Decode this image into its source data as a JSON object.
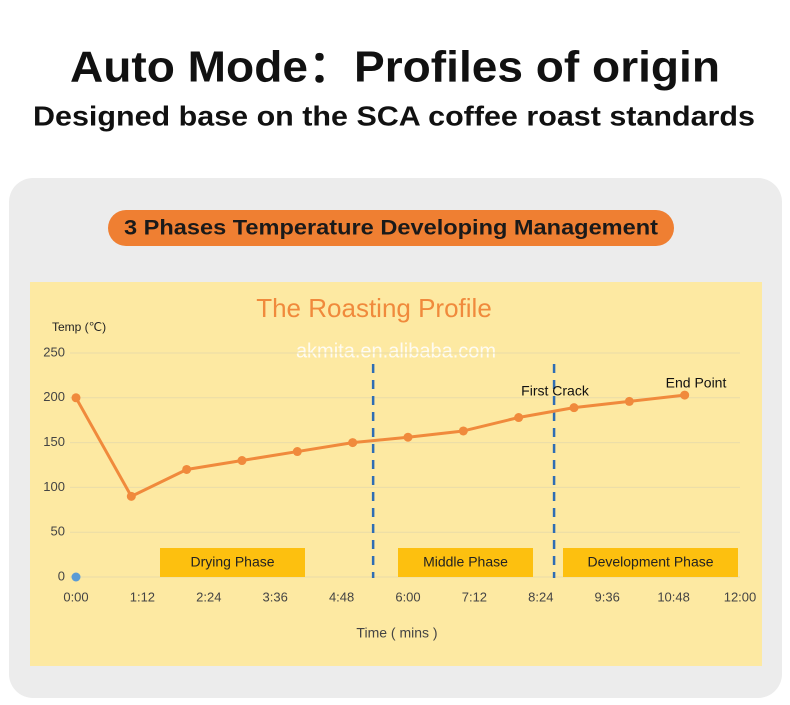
{
  "header": {
    "title": "Auto Mode：Profiles of origin",
    "subtitle": "Designed base on the SCA coffee roast standards"
  },
  "banner": "3 Phases Temperature Developing Management",
  "chart_data": {
    "type": "line",
    "title": "The Roasting Profile",
    "watermark": "akmita.en.alibaba.com",
    "y_label": "Temp (℃)",
    "x_label": "Time ( mins )",
    "series": [
      {
        "color": "#f08a3c",
        "x": [
          0,
          1,
          2,
          3,
          4,
          5,
          6,
          7,
          8,
          9,
          10,
          11
        ],
        "values": [
          200,
          90,
          120,
          130,
          140,
          150,
          156,
          163,
          178,
          189,
          196,
          203
        ]
      }
    ],
    "start_marker": {
      "x": 0,
      "value": 0,
      "color": "#5b9bd5"
    },
    "xlim": [
      0,
      12
    ],
    "xticks": [
      {
        "value": 0,
        "label": "0:00"
      },
      {
        "value": 1.2,
        "label": "1:12"
      },
      {
        "value": 2.4,
        "label": "2:24"
      },
      {
        "value": 3.6,
        "label": "3:36"
      },
      {
        "value": 4.8,
        "label": "4:48"
      },
      {
        "value": 6,
        "label": "6:00"
      },
      {
        "value": 7.2,
        "label": "7:12"
      },
      {
        "value": 8.4,
        "label": "8:24"
      },
      {
        "value": 9.6,
        "label": "9:36"
      },
      {
        "value": 10.8,
        "label": "10:48"
      },
      {
        "value": 12,
        "label": "12:00"
      }
    ],
    "ylim": [
      0,
      250
    ],
    "yticks": [
      0,
      50,
      100,
      150,
      200,
      250
    ],
    "grid": true,
    "phase_dividers": [
      5.37,
      8.64
    ],
    "divider_color": "#2e6db4",
    "phases": [
      "Drying Phase",
      "Middle Phase",
      "Development Phase"
    ],
    "annotations": [
      "First Crack",
      "End Point"
    ]
  }
}
